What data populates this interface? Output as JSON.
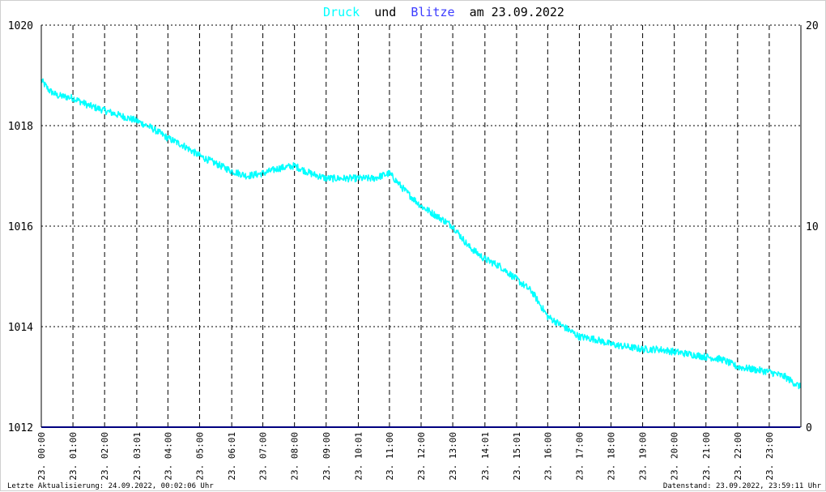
{
  "chart_data": {
    "type": "line",
    "title": {
      "part1": "Druck",
      "part2": "und",
      "part3": "Blitze",
      "part4": "am 23.09.2022"
    },
    "colors": {
      "druck": "#00ffff",
      "blitze": "#3c3cff",
      "title_text": "#000000",
      "grid": "#000000",
      "blitze_line": "#000080"
    },
    "y_left": {
      "ylim": [
        1012,
        1020
      ],
      "ticks": [
        1012,
        1014,
        1016,
        1018,
        1020
      ]
    },
    "y_right": {
      "ylim": [
        0,
        20
      ],
      "ticks": [
        0,
        10,
        20
      ]
    },
    "x_ticks": [
      "23. 00:00",
      "23. 01:00",
      "23. 02:00",
      "23. 03:01",
      "23. 04:00",
      "23. 05:00",
      "23. 06:01",
      "23. 07:00",
      "23. 08:00",
      "23. 09:00",
      "23. 10:01",
      "23. 11:00",
      "23. 12:00",
      "23. 13:00",
      "23. 14:01",
      "23. 15:01",
      "23. 16:00",
      "23. 17:00",
      "23. 18:00",
      "23. 19:00",
      "23. 20:00",
      "23. 21:00",
      "23. 22:00",
      "23. 23:00"
    ],
    "grid": true,
    "series": [
      {
        "name": "Druck",
        "axis": "left",
        "x": [
          "00:00",
          "00:15",
          "00:30",
          "01:00",
          "01:30",
          "02:00",
          "02:30",
          "03:00",
          "03:30",
          "04:00",
          "04:30",
          "05:00",
          "05:30",
          "06:00",
          "06:30",
          "07:00",
          "07:30",
          "08:00",
          "08:30",
          "09:00",
          "09:30",
          "10:00",
          "10:30",
          "11:00",
          "11:30",
          "12:00",
          "12:30",
          "13:00",
          "13:30",
          "14:00",
          "14:30",
          "15:00",
          "15:30",
          "16:00",
          "16:30",
          "17:00",
          "17:30",
          "18:00",
          "18:30",
          "19:00",
          "19:30",
          "20:00",
          "20:30",
          "21:00",
          "21:30",
          "22:00",
          "22:30",
          "23:00",
          "23:30",
          "23:59"
        ],
        "values": [
          1018.9,
          1018.7,
          1018.6,
          1018.55,
          1018.4,
          1018.3,
          1018.2,
          1018.1,
          1017.95,
          1017.75,
          1017.6,
          1017.4,
          1017.25,
          1017.1,
          1017.0,
          1017.05,
          1017.15,
          1017.2,
          1017.05,
          1016.95,
          1016.95,
          1016.95,
          1016.95,
          1017.05,
          1016.7,
          1016.4,
          1016.2,
          1016.0,
          1015.6,
          1015.35,
          1015.2,
          1014.95,
          1014.7,
          1014.2,
          1014.0,
          1013.8,
          1013.75,
          1013.65,
          1013.6,
          1013.55,
          1013.55,
          1013.5,
          1013.45,
          1013.4,
          1013.35,
          1013.2,
          1013.15,
          1013.1,
          1013.0,
          1012.8
        ]
      },
      {
        "name": "Blitze",
        "axis": "right",
        "x": [
          "00:00",
          "23:59"
        ],
        "values": [
          0,
          0
        ]
      }
    ]
  },
  "footer": {
    "left": "Letzte Aktualisierung: 24.09.2022, 00:02:06 Uhr",
    "right": "Datenstand: 23.09.2022, 23:59:11 Uhr"
  }
}
